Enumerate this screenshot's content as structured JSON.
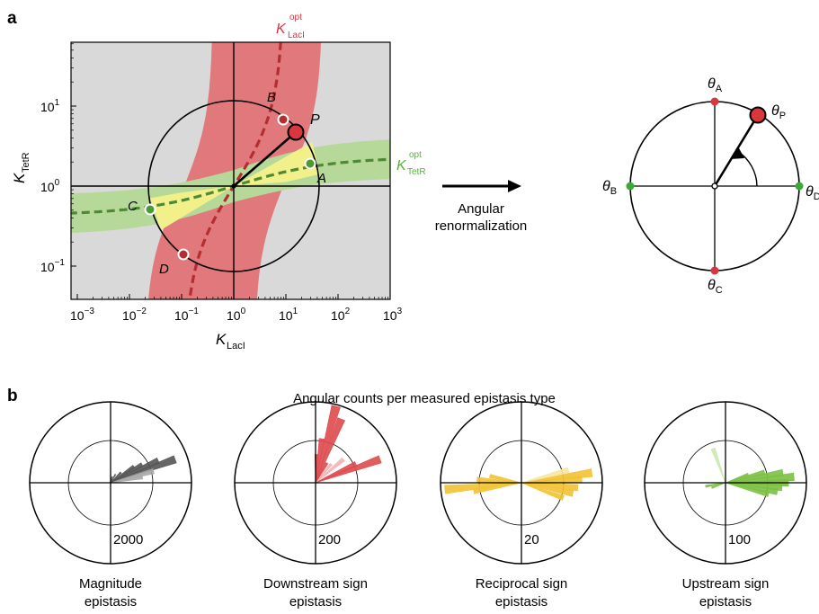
{
  "panel_a": {
    "label": "a",
    "xlabel_main": "K",
    "xlabel_sub": "LacI",
    "ylabel_main": "K",
    "ylabel_sub": "TetR",
    "xtick_labels": [
      {
        "exp": -3,
        "base": "10",
        "pow": "−3"
      },
      {
        "exp": -2,
        "base": "10",
        "pow": "−2"
      },
      {
        "exp": -1,
        "base": "10",
        "pow": "−1"
      },
      {
        "exp": 0,
        "base": "10",
        "pow": "0"
      },
      {
        "exp": 1,
        "base": "10",
        "pow": "1"
      },
      {
        "exp": 2,
        "base": "10",
        "pow": "2"
      },
      {
        "exp": 3,
        "base": "10",
        "pow": "3"
      }
    ],
    "ytick_labels": [
      {
        "exp": -1,
        "base": "10",
        "pow": "−1"
      },
      {
        "exp": 0,
        "base": "10",
        "pow": "0"
      },
      {
        "exp": 1,
        "base": "10",
        "pow": "1"
      }
    ],
    "curve_labels": {
      "laci": {
        "main": "K",
        "sup": "opt",
        "sub": "LacI",
        "color": "#d9363e"
      },
      "tetr": {
        "main": "K",
        "sup": "opt",
        "sub": "TetR",
        "color": "#58b03a"
      }
    },
    "points": [
      {
        "name": "A",
        "x": 30,
        "y": 1.9,
        "color": "#4c9a34"
      },
      {
        "name": "B",
        "x": 10,
        "y": 6.5,
        "color": "#b52d2f"
      },
      {
        "name": "C",
        "x": 0.025,
        "y": 0.52,
        "color": "#4c9a34"
      },
      {
        "name": "D",
        "x": 0.1,
        "y": 0.14,
        "color": "#b52d2f"
      },
      {
        "name": "P",
        "x": 18,
        "y": 4.5,
        "color": "#d9363e"
      }
    ],
    "colors": {
      "background": "#d9d9d9",
      "red_band": "#e0787c",
      "green_band": "#b6d99a",
      "yellow": "#f2f08a",
      "red_curve": "#b52d2f",
      "green_curve": "#4e8a34"
    }
  },
  "arrow": {
    "line1": "Angular",
    "line2": "renormalization"
  },
  "panel_a_right": {
    "labels": [
      {
        "name": "A",
        "main": "θ",
        "sub": "A",
        "color": "#d9363e"
      },
      {
        "name": "B",
        "main": "θ",
        "sub": "B",
        "color": "#3aa83a"
      },
      {
        "name": "C",
        "main": "θ",
        "sub": "C",
        "color": "#d9363e"
      },
      {
        "name": "D",
        "main": "θ",
        "sub": "D",
        "color": "#3aa83a"
      },
      {
        "name": "P",
        "main": "θ",
        "sub": "P",
        "color": "#d9363e"
      }
    ]
  },
  "panel_b": {
    "label": "b",
    "title": "Angular counts per measured epistasis type",
    "polar_charts": [
      {
        "name": "Magnitude epistasis",
        "line1": "Magnitude",
        "line2": "epistasis",
        "scale_label": "2000",
        "color": "#555555",
        "light": "#a9a9a9",
        "bars": [
          {
            "angle": 20,
            "r": 0.85,
            "light": false
          },
          {
            "angle": 25,
            "r": 0.65,
            "light": false
          },
          {
            "angle": 15,
            "r": 0.55,
            "light": true
          },
          {
            "angle": 30,
            "r": 0.45,
            "light": false
          },
          {
            "angle": 35,
            "r": 0.35,
            "light": false
          },
          {
            "angle": 10,
            "r": 0.4,
            "light": true
          },
          {
            "angle": 45,
            "r": 0.18,
            "light": false
          },
          {
            "angle": 60,
            "r": 0.12,
            "light": false
          },
          {
            "angle": 75,
            "r": 0.08,
            "light": false
          }
        ]
      },
      {
        "name": "Downstream sign epistasis",
        "line1": "Downstream sign",
        "line2": "epistasis",
        "scale_label": "200",
        "color": "#dd4a4e",
        "light": "#f2b4b4",
        "bars": [
          {
            "angle": 75,
            "r": 0.98,
            "light": false
          },
          {
            "angle": 68,
            "r": 0.85,
            "light": false
          },
          {
            "angle": 82,
            "r": 0.55,
            "light": false
          },
          {
            "angle": 88,
            "r": 0.35,
            "light": false
          },
          {
            "angle": 20,
            "r": 0.85,
            "light": false
          },
          {
            "angle": 25,
            "r": 0.55,
            "light": false
          },
          {
            "angle": 40,
            "r": 0.45,
            "light": true
          },
          {
            "angle": 50,
            "r": 0.3,
            "light": true
          },
          {
            "angle": 60,
            "r": 0.28,
            "light": false
          }
        ]
      },
      {
        "name": "Reciprocal sign epistasis",
        "line1": "Reciprocal sign",
        "line2": "epistasis",
        "scale_label": "20",
        "color": "#f1c232",
        "light": "#f8e6a0",
        "bars": [
          {
            "angle": 8,
            "r": 0.88,
            "light": false
          },
          {
            "angle": 3,
            "r": 0.75,
            "light": false
          },
          {
            "angle": 15,
            "r": 0.6,
            "light": true
          },
          {
            "angle": -5,
            "r": 0.7,
            "light": false
          },
          {
            "angle": -12,
            "r": 0.65,
            "light": false
          },
          {
            "angle": -20,
            "r": 0.55,
            "light": false
          },
          {
            "angle": 185,
            "r": 0.95,
            "light": false
          },
          {
            "angle": 190,
            "r": 0.6,
            "light": false
          },
          {
            "angle": 176,
            "r": 0.55,
            "light": false
          },
          {
            "angle": 168,
            "r": 0.4,
            "light": false
          }
        ]
      },
      {
        "name": "Upstream sign epistasis",
        "line1": "Upstream sign",
        "line2": "epistasis",
        "scale_label": "100",
        "color": "#7cc043",
        "light": "#cde7b0",
        "bars": [
          {
            "angle": 5,
            "r": 0.85,
            "light": false
          },
          {
            "angle": 10,
            "r": 0.72,
            "light": false
          },
          {
            "angle": 0,
            "r": 0.78,
            "light": false
          },
          {
            "angle": -5,
            "r": 0.7,
            "light": false
          },
          {
            "angle": -10,
            "r": 0.65,
            "light": false
          },
          {
            "angle": -15,
            "r": 0.55,
            "light": false
          },
          {
            "angle": 15,
            "r": 0.5,
            "light": false
          },
          {
            "angle": 20,
            "r": 0.3,
            "light": false
          },
          {
            "angle": 110,
            "r": 0.45,
            "light": true
          },
          {
            "angle": 190,
            "r": 0.25,
            "light": false
          },
          {
            "angle": 200,
            "r": 0.18,
            "light": false
          }
        ]
      }
    ]
  },
  "chart_data": [
    {
      "type": "scatter",
      "xlabel": "K LacI",
      "ylabel": "K TetR",
      "x_scale": "log",
      "y_scale": "log",
      "xlim": [
        0.0007,
        1300
      ],
      "ylim": [
        0.03,
        55
      ],
      "series": [
        {
          "name": "A",
          "x": [
            30
          ],
          "y": [
            1.9
          ]
        },
        {
          "name": "B",
          "x": [
            10
          ],
          "y": [
            6.5
          ]
        },
        {
          "name": "C",
          "x": [
            0.025
          ],
          "y": [
            0.52
          ]
        },
        {
          "name": "D",
          "x": [
            0.1
          ],
          "y": [
            0.14
          ]
        },
        {
          "name": "P",
          "x": [
            18
          ],
          "y": [
            4.5
          ]
        }
      ]
    },
    {
      "type": "polar-bar",
      "title": "Angular counts per measured epistasis type",
      "charts": [
        "Magnitude epistasis",
        "Downstream sign epistasis",
        "Reciprocal sign epistasis",
        "Upstream sign epistasis"
      ],
      "scale_labels": [
        "2000",
        "200",
        "20",
        "100"
      ]
    }
  ]
}
